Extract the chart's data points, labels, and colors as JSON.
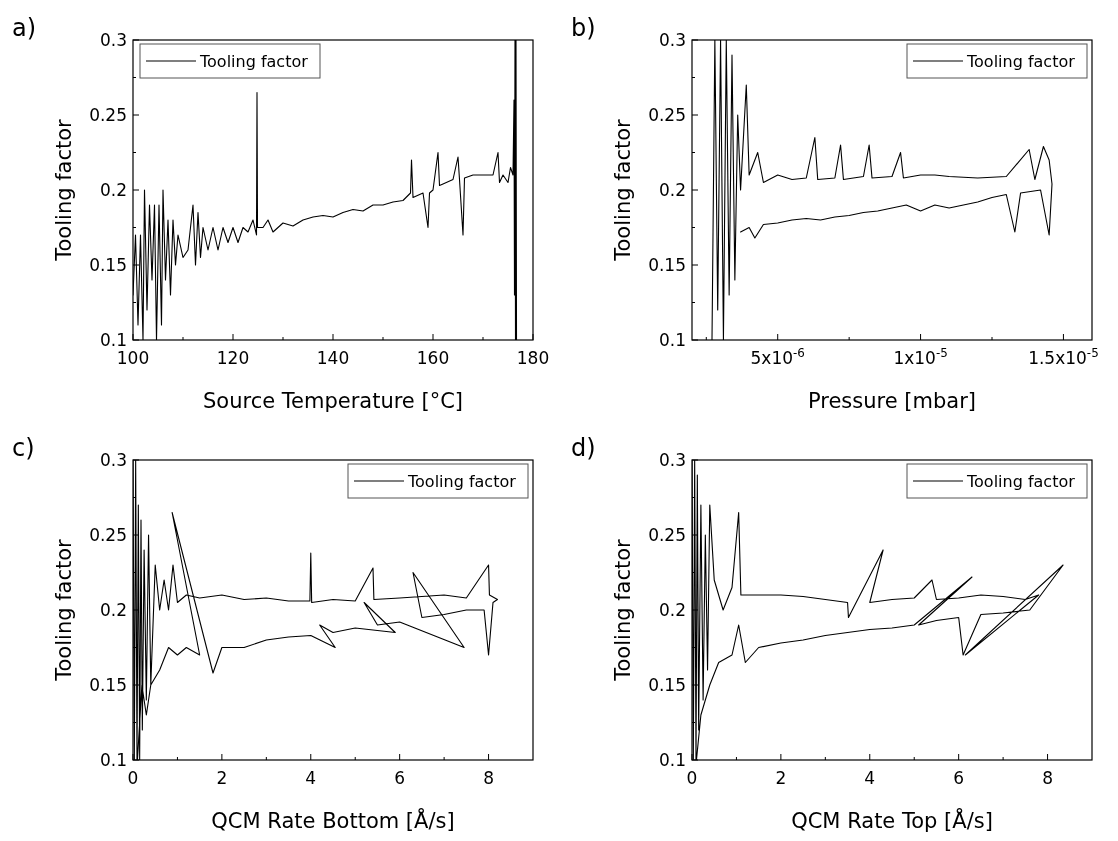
{
  "chart_data": [
    {
      "type": "line",
      "title": "a)",
      "xlabel": "Source Temperature [°C]",
      "ylabel": "Tooling factor",
      "legend": "top left",
      "xlim": [
        100,
        180
      ],
      "ylim": [
        0.1,
        0.3
      ],
      "xticks": [
        100,
        {
          "value": 110,
          "label": null
        },
        120,
        {
          "value": 130,
          "label": null
        },
        140,
        {
          "value": 150,
          "label": null
        },
        160,
        {
          "value": 170,
          "label": null
        },
        180
      ],
      "yticks": [
        0.1,
        {
          "value": 0.125,
          "label": null
        },
        0.15,
        {
          "value": 0.175,
          "label": null
        },
        0.2,
        {
          "value": 0.225,
          "label": null
        },
        0.25,
        {
          "value": 0.275,
          "label": null
        },
        0.3
      ],
      "series": [
        {
          "name": "Tooling factor",
          "color": "#000000",
          "x": [
            100,
            100.5,
            101,
            101.5,
            102,
            102.3,
            102.8,
            103.3,
            103.8,
            104.3,
            104.7,
            105.2,
            105.7,
            106,
            106.5,
            107,
            107.5,
            108,
            108.5,
            109,
            110,
            111,
            112,
            112.5,
            113,
            113.5,
            114,
            115,
            116,
            117,
            118,
            119,
            120,
            121,
            122,
            123,
            124,
            124.7,
            124.8,
            124.9,
            126,
            127,
            128,
            130,
            132,
            134,
            136,
            138,
            140,
            142,
            144,
            146,
            148,
            150,
            152,
            154,
            155.5,
            155.7,
            156,
            158,
            159,
            159.3,
            160,
            161,
            161.3,
            162,
            164,
            165,
            165.3,
            166,
            166.3,
            168,
            170,
            172,
            173,
            173.3,
            174,
            175,
            175.5,
            176,
            176.2,
            176.3,
            176.4,
            176.5,
            176.6,
            176.7
          ],
          "values": [
            0.13,
            0.17,
            0.11,
            0.17,
            0.1,
            0.2,
            0.12,
            0.19,
            0.14,
            0.19,
            0.1,
            0.19,
            0.11,
            0.2,
            0.14,
            0.18,
            0.13,
            0.18,
            0.15,
            0.17,
            0.155,
            0.16,
            0.19,
            0.15,
            0.185,
            0.155,
            0.175,
            0.16,
            0.175,
            0.16,
            0.175,
            0.165,
            0.175,
            0.165,
            0.175,
            0.172,
            0.18,
            0.17,
            0.265,
            0.175,
            0.175,
            0.18,
            0.172,
            0.178,
            0.176,
            0.18,
            0.182,
            0.183,
            0.182,
            0.185,
            0.187,
            0.186,
            0.19,
            0.19,
            0.192,
            0.193,
            0.198,
            0.22,
            0.195,
            0.198,
            0.175,
            0.198,
            0.2,
            0.225,
            0.203,
            0.204,
            0.207,
            0.222,
            0.207,
            0.17,
            0.208,
            0.21,
            0.21,
            0.21,
            0.225,
            0.205,
            0.21,
            0.205,
            0.215,
            0.21,
            0.26,
            0.13,
            0.3,
            0.1,
            0.3,
            0.1
          ]
        }
      ]
    },
    {
      "type": "line",
      "title": "b)",
      "xlabel": "Pressure [mbar]",
      "ylabel": "Tooling factor",
      "legend": "top right",
      "xlim": [
        2e-06,
        1.6e-05
      ],
      "ylim": [
        0.1,
        0.3
      ],
      "xticks": [
        {
          "value": 2.5e-06,
          "label": null
        },
        {
          "value": 5e-06,
          "label": "5x10$^{-6}$"
        },
        {
          "value": 7.5e-06,
          "label": null
        },
        {
          "value": 1e-05,
          "label": "1x10$^{-5}$"
        },
        {
          "value": 1.25e-05,
          "label": null
        },
        {
          "value": 1.5e-05,
          "label": "1.5x10$^{-5}$"
        }
      ],
      "yticks": [
        0.1,
        {
          "value": 0.125,
          "label": null
        },
        0.15,
        {
          "value": 0.175,
          "label": null
        },
        0.2,
        {
          "value": 0.225,
          "label": null
        },
        0.25,
        {
          "value": 0.275,
          "label": null
        },
        0.3
      ],
      "series": [
        {
          "name": "Tooling factor",
          "color": "#000000",
          "x": [
            2.7e-06,
            2.8e-06,
            2.9e-06,
            3e-06,
            3.1e-06,
            3.2e-06,
            3.3e-06,
            3.4e-06,
            3.5e-06,
            3.6e-06,
            3.7e-06,
            3.9e-06,
            4e-06,
            4.3e-06,
            4.5e-06,
            5e-06,
            5.5e-06,
            6e-06,
            6.3e-06,
            6.4e-06,
            7e-06,
            7.2e-06,
            7.3e-06,
            8e-06,
            8.2e-06,
            8.3e-06,
            9e-06,
            9.3e-06,
            9.4e-06,
            1e-05,
            1.05e-05,
            1.1e-05,
            1.2e-05,
            1.3e-05,
            1.38e-05,
            1.4e-05,
            1.43e-05,
            1.45e-05,
            1.46e-05,
            1.45e-05,
            1.42e-05,
            1.35e-05,
            1.33e-05,
            1.3e-05,
            1.25e-05,
            1.2e-05,
            1.15e-05,
            1.1e-05,
            1.05e-05,
            1e-05,
            9.5e-06,
            9e-06,
            8.5e-06,
            8e-06,
            7.5e-06,
            7e-06,
            6.5e-06,
            6e-06,
            5.5e-06,
            5e-06,
            4.5e-06,
            4.2e-06,
            4e-06,
            3.7e-06
          ],
          "values": [
            0.1,
            0.3,
            0.12,
            0.3,
            0.1,
            0.3,
            0.13,
            0.29,
            0.14,
            0.25,
            0.2,
            0.27,
            0.21,
            0.225,
            0.205,
            0.21,
            0.207,
            0.208,
            0.235,
            0.207,
            0.208,
            0.23,
            0.207,
            0.209,
            0.23,
            0.208,
            0.209,
            0.225,
            0.208,
            0.21,
            0.21,
            0.209,
            0.208,
            0.209,
            0.227,
            0.207,
            0.229,
            0.22,
            0.204,
            0.17,
            0.2,
            0.198,
            0.172,
            0.197,
            0.195,
            0.192,
            0.19,
            0.188,
            0.19,
            0.186,
            0.19,
            0.188,
            0.186,
            0.185,
            0.183,
            0.182,
            0.18,
            0.181,
            0.18,
            0.178,
            0.177,
            0.168,
            0.175,
            0.172
          ]
        }
      ]
    },
    {
      "type": "line",
      "title": "c)",
      "xlabel": "QCM Rate Bottom [Å/s]",
      "ylabel": "Tooling factor",
      "legend": "top right",
      "xlim": [
        0,
        9
      ],
      "ylim": [
        0.1,
        0.3
      ],
      "xticks": [
        0,
        {
          "value": 1,
          "label": null
        },
        2,
        {
          "value": 3,
          "label": null
        },
        4,
        {
          "value": 5,
          "label": null
        },
        6,
        {
          "value": 7,
          "label": null
        },
        8
      ],
      "yticks": [
        0.1,
        {
          "value": 0.125,
          "label": null
        },
        0.15,
        {
          "value": 0.175,
          "label": null
        },
        0.2,
        {
          "value": 0.225,
          "label": null
        },
        0.25,
        {
          "value": 0.275,
          "label": null
        },
        0.3
      ],
      "series": [
        {
          "name": "Tooling factor",
          "color": "#000000",
          "x": [
            0,
            0.03,
            0.06,
            0.09,
            0.12,
            0.15,
            0.18,
            0.21,
            0.25,
            0.3,
            0.35,
            0.4,
            0.5,
            0.6,
            0.7,
            0.8,
            0.9,
            1.0,
            1.2,
            1.5,
            2,
            2.5,
            3,
            3.5,
            3.98,
            4.0,
            4.02,
            4.5,
            5,
            5.4,
            5.42,
            6,
            6.5,
            7,
            7.5,
            8,
            8.02,
            8.2,
            8.1,
            8,
            7.9,
            7.5,
            7,
            6.5,
            6.3,
            7.45,
            6.0,
            5.5,
            5.2,
            5.9,
            5.0,
            4.5,
            4.2,
            4.55,
            4.0,
            3.5,
            3,
            2.5,
            2,
            1.8,
            0.88,
            1.5,
            1.2,
            1,
            0.8,
            0.6,
            0.4,
            0.3,
            0.2,
            0.1
          ],
          "values": [
            0.3,
            0.1,
            0.3,
            0.1,
            0.27,
            0.1,
            0.26,
            0.12,
            0.24,
            0.14,
            0.25,
            0.15,
            0.23,
            0.2,
            0.22,
            0.2,
            0.23,
            0.205,
            0.21,
            0.208,
            0.21,
            0.207,
            0.208,
            0.206,
            0.206,
            0.238,
            0.205,
            0.207,
            0.206,
            0.228,
            0.207,
            0.208,
            0.209,
            0.21,
            0.208,
            0.23,
            0.21,
            0.207,
            0.205,
            0.17,
            0.2,
            0.2,
            0.197,
            0.195,
            0.225,
            0.175,
            0.192,
            0.19,
            0.205,
            0.185,
            0.188,
            0.185,
            0.19,
            0.175,
            0.183,
            0.182,
            0.18,
            0.175,
            0.175,
            0.158,
            0.265,
            0.17,
            0.175,
            0.17,
            0.175,
            0.16,
            0.15,
            0.13,
            0.15,
            0.1
          ]
        }
      ]
    },
    {
      "type": "line",
      "title": "d)",
      "xlabel": "QCM Rate Top [Å/s]",
      "ylabel": "Tooling factor",
      "legend": "top right",
      "xlim": [
        0,
        9
      ],
      "ylim": [
        0.1,
        0.3
      ],
      "xticks": [
        0,
        {
          "value": 1,
          "label": null
        },
        2,
        {
          "value": 3,
          "label": null
        },
        4,
        {
          "value": 5,
          "label": null
        },
        6,
        {
          "value": 7,
          "label": null
        },
        8
      ],
      "yticks": [
        0.1,
        {
          "value": 0.125,
          "label": null
        },
        0.15,
        {
          "value": 0.175,
          "label": null
        },
        0.2,
        {
          "value": 0.225,
          "label": null
        },
        0.25,
        {
          "value": 0.275,
          "label": null
        },
        0.3
      ],
      "series": [
        {
          "name": "Tooling factor",
          "color": "#000000",
          "x": [
            0,
            0.03,
            0.06,
            0.09,
            0.12,
            0.15,
            0.2,
            0.25,
            0.3,
            0.35,
            0.4,
            0.5,
            0.7,
            0.9,
            1.05,
            1.1,
            1.5,
            2,
            2.5,
            3,
            3.5,
            3.52,
            4.3,
            4.0,
            4.5,
            5,
            5.4,
            5.5,
            6,
            6.5,
            7,
            7.5,
            7.8,
            6.15,
            8.35,
            7.6,
            7,
            6.5,
            6.1,
            6,
            5.5,
            5.1,
            6.3,
            5.0,
            4.5,
            4,
            3.5,
            3,
            2.5,
            2,
            1.5,
            1.2,
            1.05,
            0.9,
            0.6,
            0.4,
            0.2,
            0.1
          ],
          "values": [
            0.3,
            0.1,
            0.3,
            0.1,
            0.29,
            0.12,
            0.27,
            0.14,
            0.25,
            0.16,
            0.27,
            0.22,
            0.2,
            0.215,
            0.265,
            0.21,
            0.21,
            0.21,
            0.209,
            0.207,
            0.205,
            0.195,
            0.24,
            0.205,
            0.207,
            0.208,
            0.22,
            0.207,
            0.208,
            0.21,
            0.209,
            0.207,
            0.21,
            0.17,
            0.23,
            0.2,
            0.198,
            0.197,
            0.17,
            0.195,
            0.193,
            0.19,
            0.222,
            0.19,
            0.188,
            0.187,
            0.185,
            0.183,
            0.18,
            0.178,
            0.175,
            0.165,
            0.19,
            0.17,
            0.165,
            0.15,
            0.13,
            0.1
          ]
        }
      ]
    }
  ]
}
